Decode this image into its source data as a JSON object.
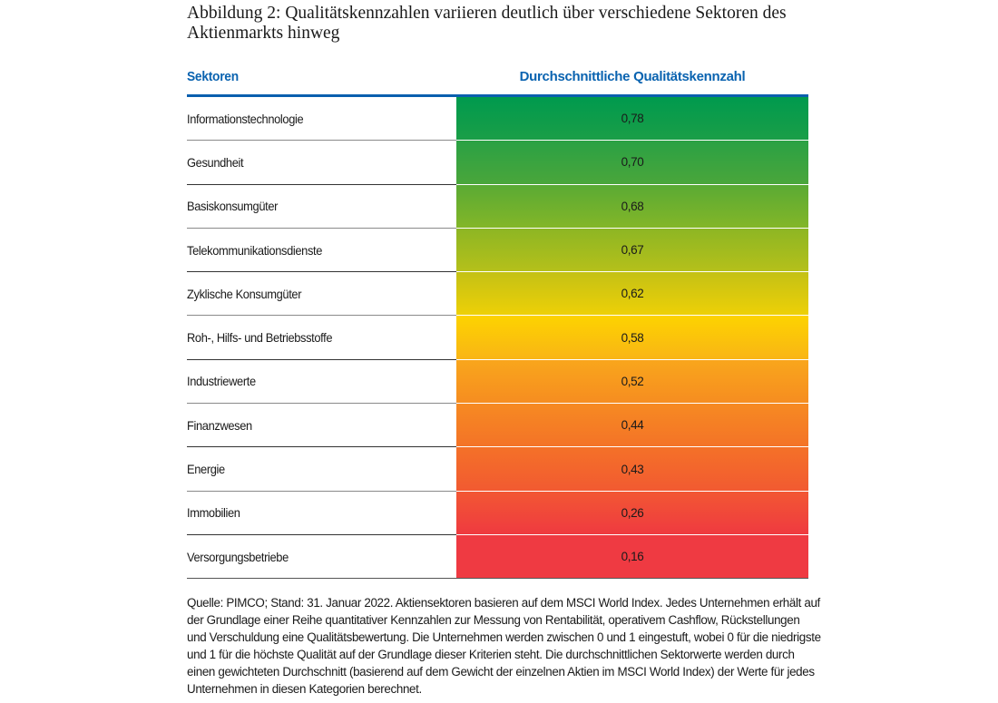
{
  "figure": {
    "title": "Abbildung 2: Qualitätskennzahlen variieren deutlich über verschiedene Sektoren des Aktienmarkts hinweg",
    "header": {
      "sector_label": "Sektoren",
      "score_label": "Durchschnittliche Qualitätskennzahl"
    },
    "colors": {
      "header_text": "#0a63b0",
      "header_rule": "#0a5fae",
      "high": "#009a4e",
      "mid": "#fcd200",
      "low": "#ef3a42"
    },
    "rows": [
      {
        "sector": "Informationstechnologie",
        "value": "0,78",
        "top": "#009a4e",
        "bottom": "#1a9e47"
      },
      {
        "sector": "Gesundheit",
        "value": "0,70",
        "top": "#2aa144",
        "bottom": "#4aa63b"
      },
      {
        "sector": "Basiskonsumgüter",
        "value": "0,68",
        "top": "#5aaa34",
        "bottom": "#83b628"
      },
      {
        "sector": "Telekommunikationsdienste",
        "value": "0,67",
        "top": "#8db624",
        "bottom": "#b5c01a"
      },
      {
        "sector": "Zyklische Konsumgüter",
        "value": "0,62",
        "top": "#c4c115",
        "bottom": "#edd007"
      },
      {
        "sector": "Roh-, Hilfs- und Betriebsstoffe",
        "value": "0,58",
        "top": "#fdd300",
        "bottom": "#f9b515"
      },
      {
        "sector": "Industriewerte",
        "value": "0,52",
        "top": "#f9a61c",
        "bottom": "#f68d20"
      },
      {
        "sector": "Finanzwesen",
        "value": "0,44",
        "top": "#f68a22",
        "bottom": "#f47327"
      },
      {
        "sector": "Energie",
        "value": "0,43",
        "top": "#f47128",
        "bottom": "#f25a31"
      },
      {
        "sector": "Immobilien",
        "value": "0,26",
        "top": "#f25733",
        "bottom": "#ef3a40"
      },
      {
        "sector": "Versorgungsbetriebe",
        "value": "0,16",
        "top": "#ef3a42",
        "bottom": "#ef3a42"
      }
    ],
    "source_note": "Quelle: PIMCO; Stand: 31. Januar 2022. Aktiensektoren basieren auf dem MSCI World Index. Jedes Unternehmen erhält auf der Grundlage einer Reihe quantitativer Kennzahlen zur Messung von Rentabilität, operativem Cashflow, Rückstellungen und Verschuldung eine Qualitätsbewertung. Die Unternehmen werden zwischen 0 und 1 eingestuft, wobei 0 für die niedrigste und 1 für die höchste Qualität auf der Grundlage dieser Kriterien steht. Die durchschnittlichen Sektorwerte werden durch einen gewichteten Durchschnitt (basierend auf dem Gewicht der einzelnen Aktien im MSCI World Index) der Werte für jedes Unternehmen in diesen Kategorien berechnet."
  },
  "chart_data": {
    "type": "table",
    "title": "Abbildung 2: Qualitätskennzahlen variieren deutlich über verschiedene Sektoren des Aktienmarkts hinweg",
    "columns": [
      "Sektoren",
      "Durchschnittliche Qualitätskennzahl"
    ],
    "categories": [
      "Informationstechnologie",
      "Gesundheit",
      "Basiskonsumgüter",
      "Telekommunikationsdienste",
      "Zyklische Konsumgüter",
      "Roh-, Hilfs- und Betriebsstoffe",
      "Industriewerte",
      "Finanzwesen",
      "Energie",
      "Immobilien",
      "Versorgungsbetriebe"
    ],
    "values": [
      0.78,
      0.7,
      0.68,
      0.67,
      0.62,
      0.58,
      0.52,
      0.44,
      0.43,
      0.26,
      0.16
    ],
    "color_scale": {
      "high": "#009a4e",
      "mid": "#fcd200",
      "low": "#ef3a42"
    },
    "range": [
      0,
      1
    ],
    "note": "Quelle: PIMCO; Stand: 31. Januar 2022."
  }
}
